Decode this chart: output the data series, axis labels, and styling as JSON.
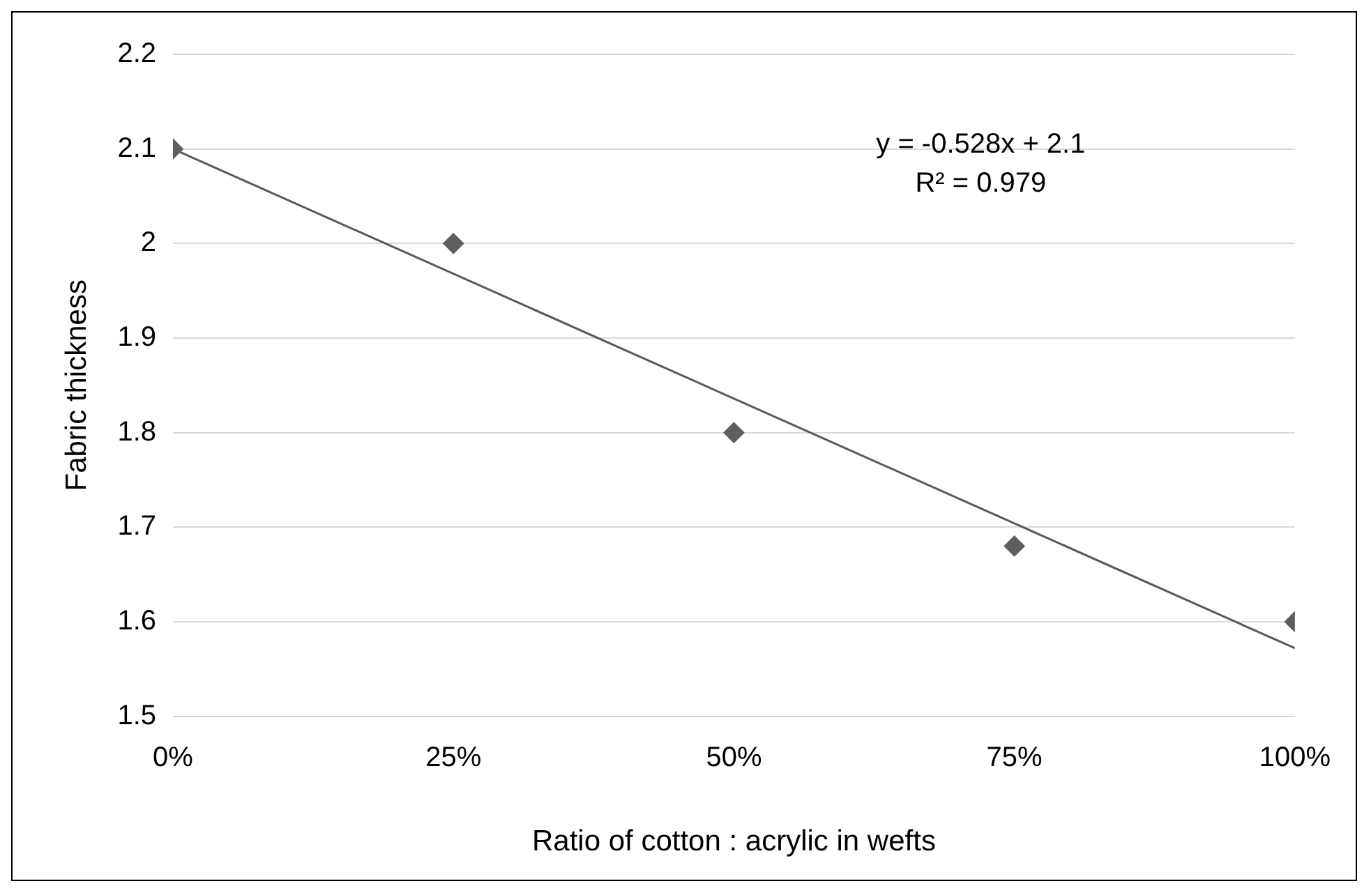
{
  "chart_data": {
    "type": "scatter",
    "xlabel": "Ratio of cotton : acrylic in wefts",
    "ylabel": "Fabric thickness",
    "x": [
      0,
      0.25,
      0.5,
      0.75,
      1
    ],
    "series": [
      {
        "type": "scatter",
        "color": "#5f5f5f",
        "marker": "diamond",
        "values": [
          2.1,
          2.0,
          1.8,
          1.68,
          1.6
        ]
      },
      {
        "type": "line",
        "color": "#595959",
        "marker": "none",
        "x": [
          0,
          1
        ],
        "values": [
          2.1,
          1.572
        ]
      }
    ],
    "xlim": [
      0,
      1
    ],
    "xticks": [
      {
        "value": 0,
        "label": "0%"
      },
      {
        "value": 0.25,
        "label": "25%"
      },
      {
        "value": 0.5,
        "label": "50%"
      },
      {
        "value": 0.75,
        "label": "75%"
      },
      {
        "value": 1,
        "label": "100%"
      }
    ],
    "ylim": [
      1.5,
      2.2
    ],
    "yticks": [
      1.5,
      1.6,
      1.7,
      1.8,
      1.9,
      2,
      2.1,
      2.2
    ],
    "grid": "y",
    "annotations": [
      "y = -0.528x + 2.1",
      "R² = 0.979"
    ]
  }
}
